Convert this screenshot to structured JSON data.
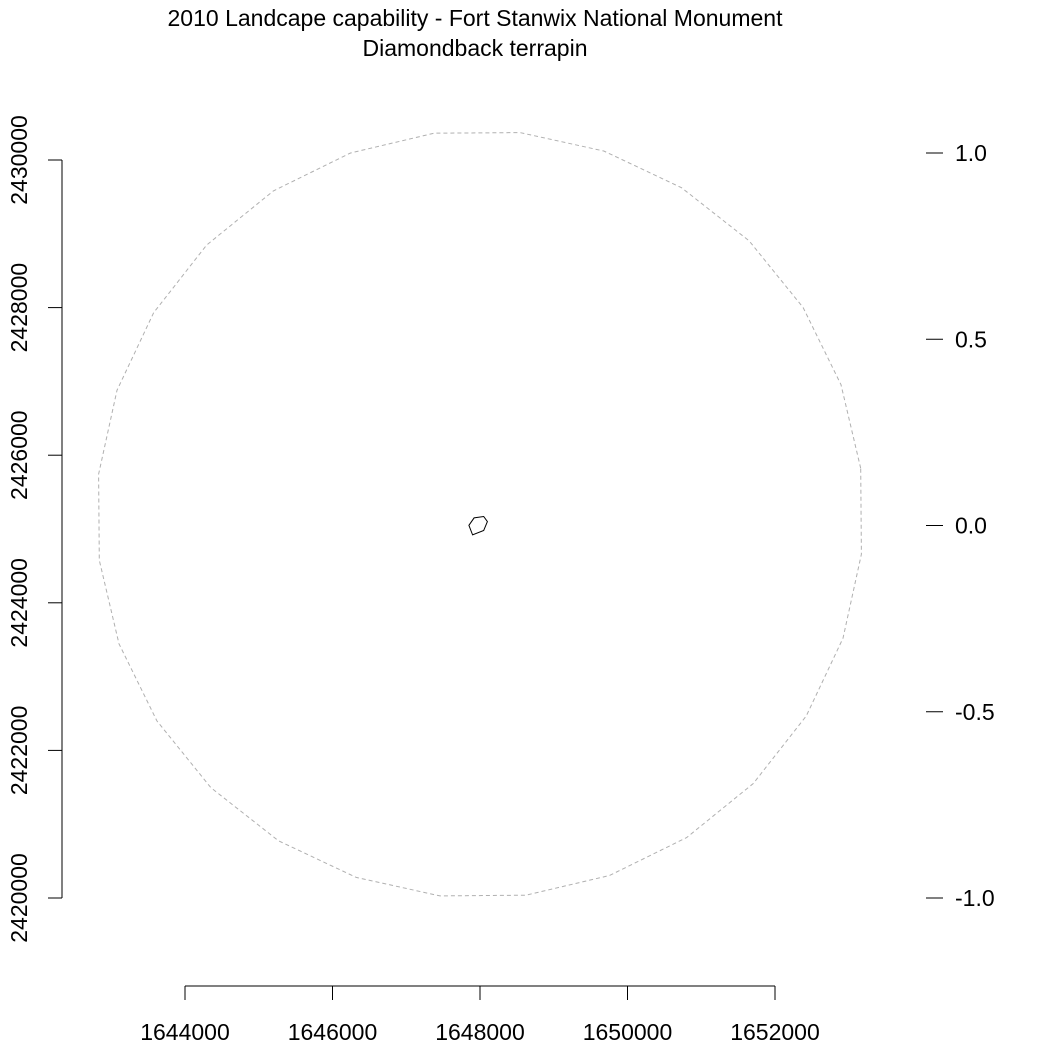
{
  "title": {
    "line1": "2010 Landcape capability - Fort Stanwix National Monument",
    "line2": "Diamondback terrapin"
  },
  "map": {
    "x_axis": {
      "ticks": [
        1644000,
        1646000,
        1648000,
        1650000,
        1652000
      ],
      "labels": [
        "1644000",
        "1646000",
        "1648000",
        "1650000",
        "1652000"
      ]
    },
    "y_axis": {
      "ticks": [
        2420000,
        2422000,
        2424000,
        2426000,
        2428000,
        2430000
      ],
      "labels": [
        "2420000",
        "2422000",
        "2424000",
        "2426000",
        "2428000",
        "2430000"
      ]
    },
    "legend_scale": {
      "ticks": [
        1.0,
        0.5,
        0.0,
        -0.5,
        -1.0
      ],
      "labels": [
        "1.0",
        "0.5",
        "0.0",
        "-0.5",
        "-1.0"
      ]
    },
    "colors": {
      "boundary_buffer": "#b0b0b0",
      "park_boundary": "#000000",
      "axis": "#000000"
    },
    "buffer_circle": {
      "center": [
        1648000,
        2425200
      ],
      "radius": 5200
    },
    "park_polygon": [
      [
        1647850,
        2425050
      ],
      [
        1647920,
        2425150
      ],
      [
        1648050,
        2425170
      ],
      [
        1648100,
        2425100
      ],
      [
        1648050,
        2424980
      ],
      [
        1647900,
        2424920
      ]
    ]
  }
}
